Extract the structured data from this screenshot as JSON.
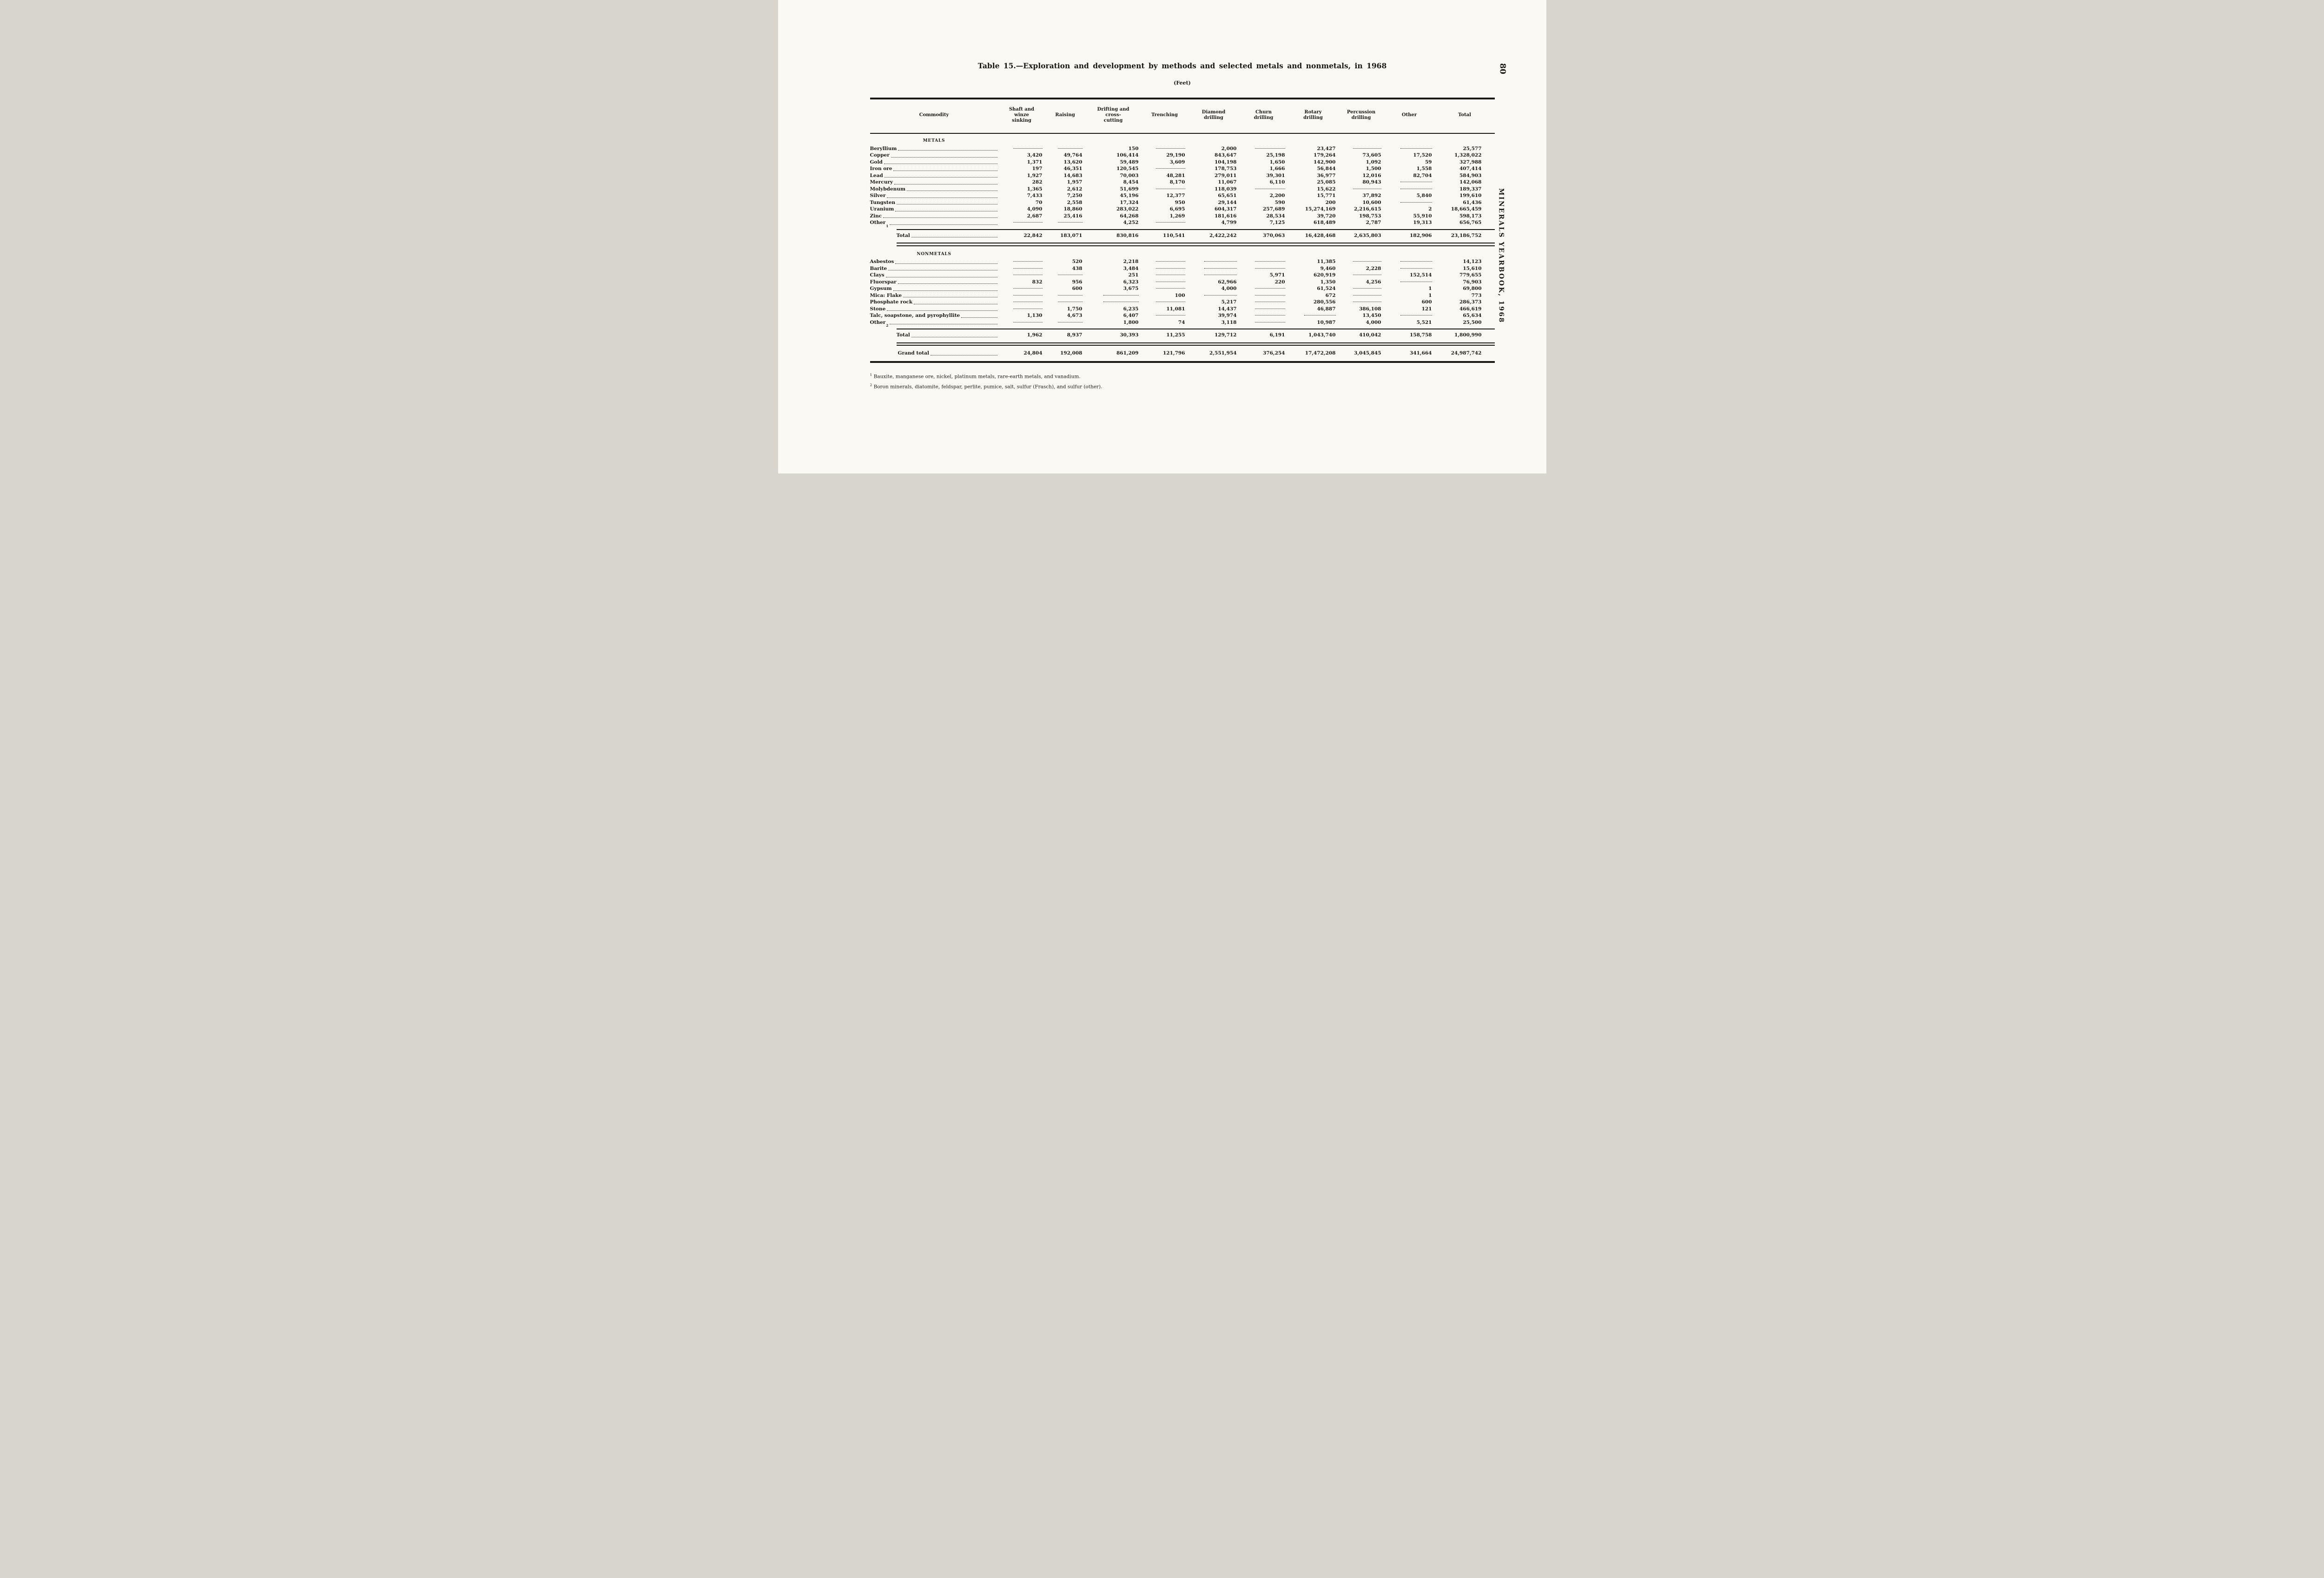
{
  "page": {
    "title": "Table 15.—Exploration and development by methods and selected metals and nonmetals, in 1968",
    "subtitle": "(Feet)",
    "page_number": "80",
    "side_text": "MINERALS YEARBOOK, 1968",
    "colors": {
      "ink": "#1b1814",
      "paper": "#faf9f4"
    },
    "footnotes": [
      {
        "marker": "1",
        "text": "Bauxite, manganese ore, nickel, platinum metals, rare-earth metals, and vanadium."
      },
      {
        "marker": "2",
        "text": "Boron minerals, diatomite, feldspar, perlite, pumice, salt, sulfur (Frasch), and sulfur (other)."
      }
    ]
  },
  "table": {
    "columns": [
      "Commodity",
      "Shaft and winze sinking",
      "Raising",
      "Drifting and cross-cutting",
      "Trenching",
      "Diamond drilling",
      "Churn drilling",
      "Rotary drilling",
      "Percussion drilling",
      "Other",
      "Total"
    ],
    "sections": [
      {
        "heading": "METALS",
        "rows": [
          {
            "label": "Beryllium",
            "values": [
              "",
              "",
              "150",
              "",
              "2,000",
              "",
              "23,427",
              "",
              "",
              "25,577"
            ]
          },
          {
            "label": "Copper",
            "values": [
              "3,420",
              "49,764",
              "106,414",
              "29,190",
              "843,647",
              "25,198",
              "179,264",
              "73,605",
              "17,520",
              "1,328,022"
            ]
          },
          {
            "label": "Gold",
            "values": [
              "1,371",
              "13,620",
              "59,489",
              "3,609",
              "104,198",
              "1,650",
              "142,900",
              "1,092",
              "59",
              "327,988"
            ]
          },
          {
            "label": "Iron ore",
            "values": [
              "197",
              "46,351",
              "120,545",
              "",
              "178,753",
              "1,666",
              "56,844",
              "1,500",
              "1,558",
              "407,414"
            ]
          },
          {
            "label": "Lead",
            "values": [
              "1,927",
              "14,683",
              "70,003",
              "48,281",
              "279,011",
              "39,301",
              "36,977",
              "12,016",
              "82,704",
              "584,903"
            ]
          },
          {
            "label": "Mercury",
            "values": [
              "282",
              "1,957",
              "8,454",
              "8,170",
              "11,067",
              "6,110",
              "25,085",
              "80,943",
              "",
              "142,068"
            ]
          },
          {
            "label": "Molybdenum",
            "values": [
              "1,365",
              "2,612",
              "51,699",
              "",
              "118,039",
              "",
              "15,622",
              "",
              "",
              "189,337"
            ]
          },
          {
            "label": "Silver",
            "values": [
              "7,433",
              "7,250",
              "45,196",
              "12,377",
              "65,651",
              "2,200",
              "15,771",
              "37,892",
              "5,840",
              "199,610"
            ]
          },
          {
            "label": "Tungsten",
            "values": [
              "70",
              "2,558",
              "17,324",
              "950",
              "29,144",
              "590",
              "200",
              "10,600",
              "",
              "61,436"
            ]
          },
          {
            "label": "Uranium",
            "values": [
              "4,090",
              "18,860",
              "283,022",
              "6,695",
              "604,317",
              "257,689",
              "15,274,169",
              "2,216,615",
              "2",
              "18,665,459"
            ]
          },
          {
            "label": "Zinc",
            "values": [
              "2,687",
              "25,416",
              "64,268",
              "1,269",
              "181,616",
              "28,534",
              "39,720",
              "198,753",
              "55,910",
              "598,173"
            ]
          },
          {
            "label": "Other",
            "marker": "1",
            "values": [
              "",
              "",
              "4,252",
              "",
              "4,799",
              "7,125",
              "618,489",
              "2,787",
              "19,313",
              "656,765"
            ]
          }
        ],
        "total": {
          "label": "Total",
          "values": [
            "22,842",
            "183,071",
            "830,816",
            "110,541",
            "2,422,242",
            "370,063",
            "16,428,468",
            "2,635,803",
            "182,906",
            "23,186,752"
          ]
        }
      },
      {
        "heading": "NONMETALS",
        "rows": [
          {
            "label": "Asbestos",
            "values": [
              "",
              "520",
              "2,218",
              "",
              "",
              "",
              "11,385",
              "",
              "",
              "14,123"
            ]
          },
          {
            "label": "Barite",
            "values": [
              "",
              "438",
              "3,484",
              "",
              "",
              "",
              "9,460",
              "2,228",
              "",
              "15,610"
            ]
          },
          {
            "label": "Clays",
            "values": [
              "",
              "",
              "251",
              "",
              "",
              "5,971",
              "620,919",
              "",
              "152,514",
              "779,655"
            ]
          },
          {
            "label": "Fluorspar",
            "values": [
              "832",
              "956",
              "6,323",
              "",
              "62,966",
              "220",
              "1,350",
              "4,256",
              "",
              "76,903"
            ]
          },
          {
            "label": "Gypsum",
            "values": [
              "",
              "600",
              "3,675",
              "",
              "4,000",
              "",
              "61,524",
              "",
              "1",
              "69,800"
            ]
          },
          {
            "label": "Mica: Flake",
            "values": [
              "",
              "",
              "",
              "100",
              "",
              "",
              "672",
              "",
              "1",
              "773"
            ]
          },
          {
            "label": "Phosphate rock",
            "values": [
              "",
              "",
              "",
              "",
              "5,217",
              "",
              "280,556",
              "",
              "600",
              "286,373"
            ]
          },
          {
            "label": "Stone",
            "values": [
              "",
              "1,750",
              "6,235",
              "11,081",
              "14,437",
              "",
              "46,887",
              "386,108",
              "121",
              "466,619"
            ]
          },
          {
            "label": "Talc, soapstone, and pyrophyllite",
            "values": [
              "1,130",
              "4,673",
              "6,407",
              "",
              "39,974",
              "",
              "",
              "13,450",
              "",
              "65,634"
            ]
          },
          {
            "label": "Other",
            "marker": "2",
            "values": [
              "",
              "",
              "1,800",
              "74",
              "3,118",
              "",
              "10,987",
              "4,000",
              "5,521",
              "25,500"
            ]
          }
        ],
        "total": {
          "label": "Total",
          "values": [
            "1,962",
            "8,937",
            "30,393",
            "11,255",
            "129,712",
            "6,191",
            "1,043,740",
            "410,042",
            "158,758",
            "1,800,990"
          ]
        }
      }
    ],
    "grand_total": {
      "label": "Grand total",
      "values": [
        "24,804",
        "192,008",
        "861,209",
        "121,796",
        "2,551,954",
        "376,254",
        "17,472,208",
        "3,045,845",
        "341,664",
        "24,987,742"
      ]
    }
  }
}
